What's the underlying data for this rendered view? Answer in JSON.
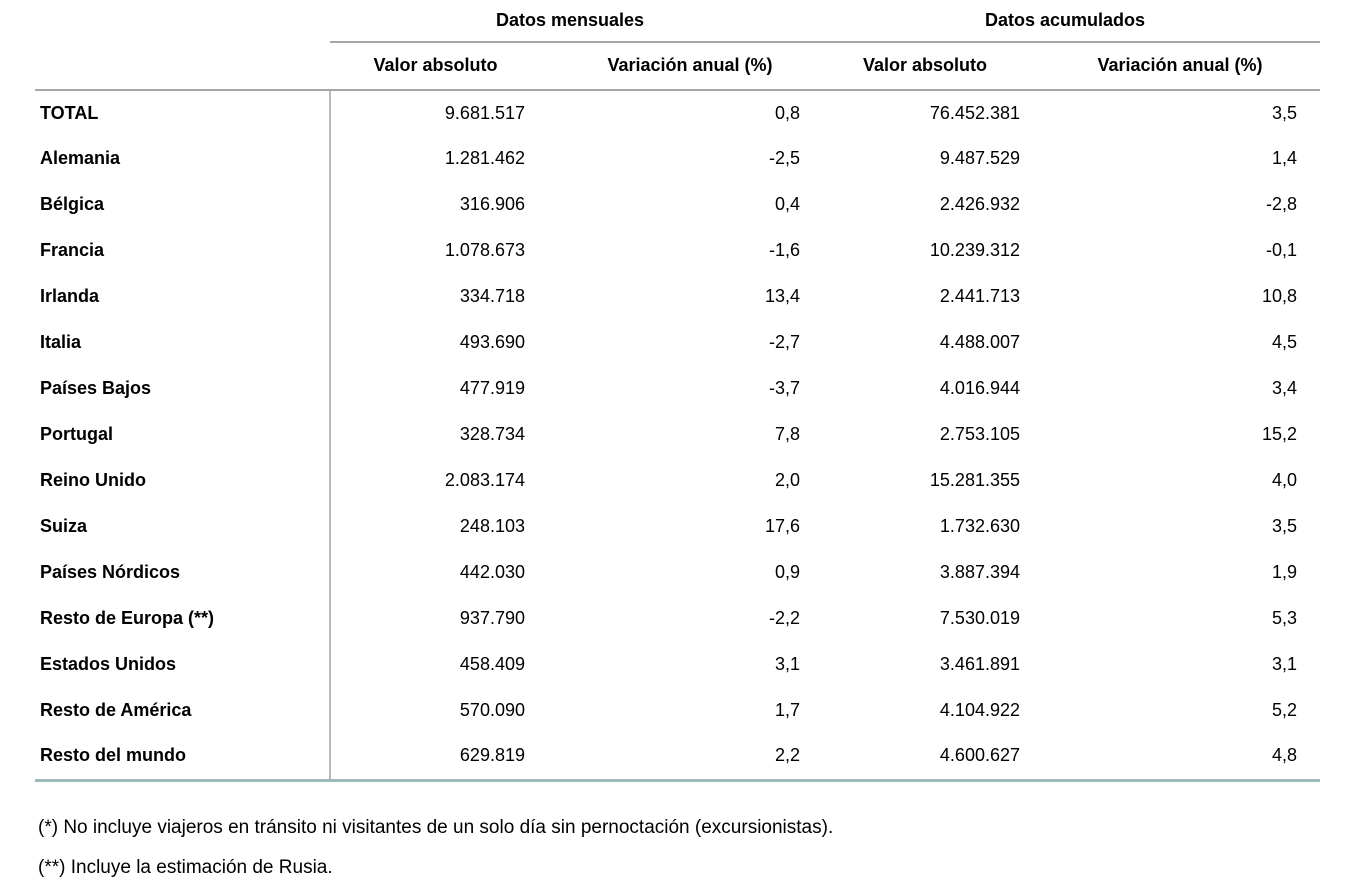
{
  "table": {
    "group_headers": [
      "Datos mensuales",
      "Datos acumulados"
    ],
    "sub_headers": [
      "Valor absoluto",
      "Variación anual (%)",
      "Valor absoluto",
      "Variación anual (%)"
    ],
    "rows": [
      {
        "label": "TOTAL",
        "monthly_value": "9.681.517",
        "monthly_variation": "0,8",
        "accumulated_value": "76.452.381",
        "accumulated_variation": "3,5"
      },
      {
        "label": "Alemania",
        "monthly_value": "1.281.462",
        "monthly_variation": "-2,5",
        "accumulated_value": "9.487.529",
        "accumulated_variation": "1,4"
      },
      {
        "label": "Bélgica",
        "monthly_value": "316.906",
        "monthly_variation": "0,4",
        "accumulated_value": "2.426.932",
        "accumulated_variation": "-2,8"
      },
      {
        "label": "Francia",
        "monthly_value": "1.078.673",
        "monthly_variation": "-1,6",
        "accumulated_value": "10.239.312",
        "accumulated_variation": "-0,1"
      },
      {
        "label": "Irlanda",
        "monthly_value": "334.718",
        "monthly_variation": "13,4",
        "accumulated_value": "2.441.713",
        "accumulated_variation": "10,8"
      },
      {
        "label": "Italia",
        "monthly_value": "493.690",
        "monthly_variation": "-2,7",
        "accumulated_value": "4.488.007",
        "accumulated_variation": "4,5"
      },
      {
        "label": "Países Bajos",
        "monthly_value": "477.919",
        "monthly_variation": "-3,7",
        "accumulated_value": "4.016.944",
        "accumulated_variation": "3,4"
      },
      {
        "label": "Portugal",
        "monthly_value": "328.734",
        "monthly_variation": "7,8",
        "accumulated_value": "2.753.105",
        "accumulated_variation": "15,2"
      },
      {
        "label": "Reino Unido",
        "monthly_value": "2.083.174",
        "monthly_variation": "2,0",
        "accumulated_value": "15.281.355",
        "accumulated_variation": "4,0"
      },
      {
        "label": "Suiza",
        "monthly_value": "248.103",
        "monthly_variation": "17,6",
        "accumulated_value": "1.732.630",
        "accumulated_variation": "3,5"
      },
      {
        "label": "Países Nórdicos",
        "monthly_value": "442.030",
        "monthly_variation": "0,9",
        "accumulated_value": "3.887.394",
        "accumulated_variation": "1,9"
      },
      {
        "label": "Resto de Europa (**)",
        "monthly_value": "937.790",
        "monthly_variation": "-2,2",
        "accumulated_value": "7.530.019",
        "accumulated_variation": "5,3"
      },
      {
        "label": "Estados Unidos",
        "monthly_value": "458.409",
        "monthly_variation": "3,1",
        "accumulated_value": "3.461.891",
        "accumulated_variation": "3,1"
      },
      {
        "label": "Resto de América",
        "monthly_value": "570.090",
        "monthly_variation": "1,7",
        "accumulated_value": "4.104.922",
        "accumulated_variation": "5,2"
      },
      {
        "label": "Resto del mundo",
        "monthly_value": "629.819",
        "monthly_variation": "2,2",
        "accumulated_value": "4.600.627",
        "accumulated_variation": "4,8"
      }
    ]
  },
  "footnotes": [
    "(*) No incluye viajeros en tránsito ni visitantes de un solo día sin pernoctación (excursionistas).",
    "(**) Incluye la estimación de Rusia."
  ],
  "colors": {
    "line_gray": "#a6a6a6",
    "line_teal": "#9cbaba",
    "divider_gray": "#b9b9b9",
    "text": "#000000"
  }
}
